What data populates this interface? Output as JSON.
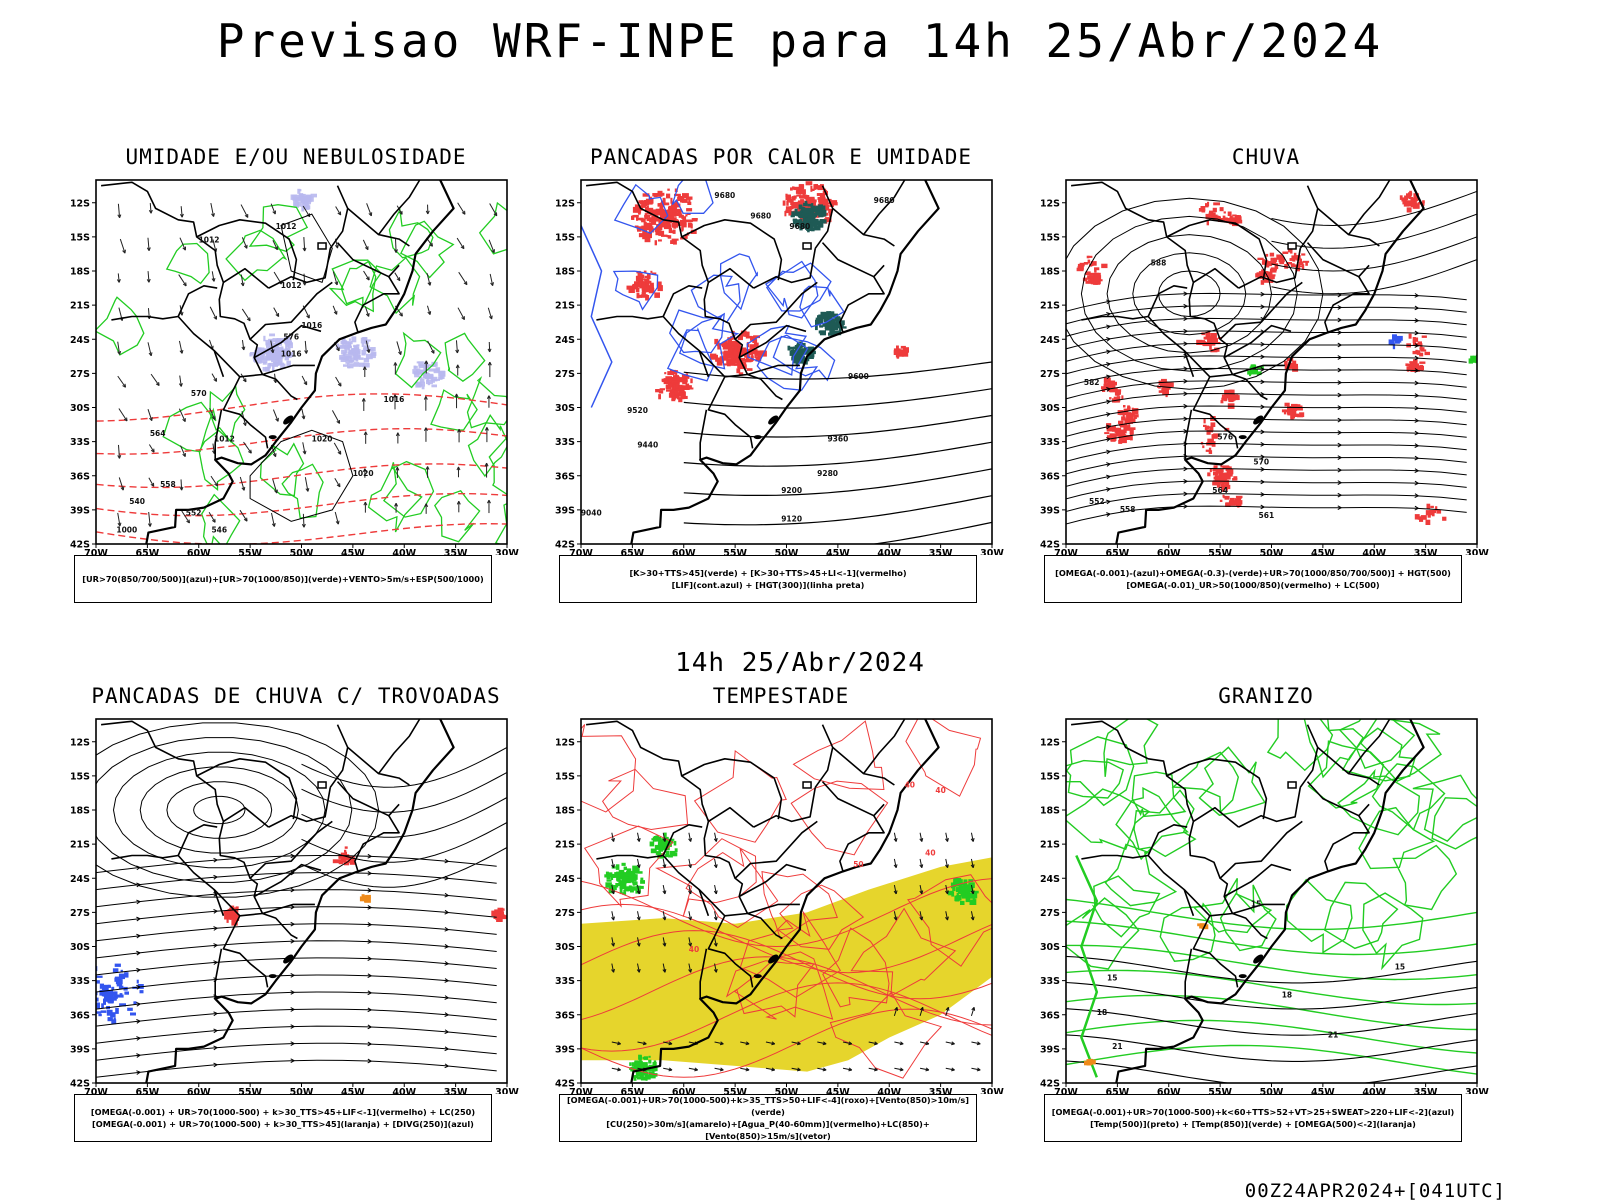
{
  "header": {
    "title": "Previsao WRF-INPE  para 14h 25/Abr/2024",
    "mid_title": "14h 25/Abr/2024",
    "footer": "00Z24APR2024+[041UTC]"
  },
  "axes": {
    "lat_labels": [
      "12S",
      "15S",
      "18S",
      "21S",
      "24S",
      "27S",
      "30S",
      "33S",
      "36S",
      "39S",
      "42S"
    ],
    "lon_labels": [
      "70W",
      "65W",
      "60W",
      "55W",
      "50W",
      "45W",
      "40W",
      "35W",
      "30W"
    ]
  },
  "panels": [
    {
      "title": "UMIDADE E/OU NEBULOSIDADE",
      "caption": [
        "[UR>70(850/700/500)](azul)+[UR>70(1000/850)](verde)+VENTO>5m/s+ESP(500/1000)"
      ],
      "contour_labels": [
        "1012",
        "1012",
        "1012",
        "1016",
        "1016",
        "1020",
        "1016",
        "1020",
        "1012",
        "1000",
        "576",
        "570",
        "564",
        "558",
        "552",
        "546",
        "540"
      ]
    },
    {
      "title": "PANCADAS POR CALOR E UMIDADE",
      "caption": [
        "[K>30+TTS>45](verde) + [K>30+TTS>45+LI<-1](vermelho)",
        "[LIF](cont.azul) + [HGT(300)](linha preta)"
      ],
      "contour_labels": [
        "9680",
        "9680",
        "9680",
        "9680",
        "9600",
        "9520",
        "9440",
        "9360",
        "9280",
        "9200",
        "9120",
        "9040"
      ]
    },
    {
      "title": "CHUVA",
      "caption": [
        "[OMEGA(-0.001)-(azul)+OMEGA(-0.3)-(verde)+UR>70(1000/850/700/500)] + HGT(500)",
        "[OMEGA(-0.01)_UR>50(1000/850)(vermelho) + LC(500)"
      ],
      "contour_labels": [
        "588",
        "582",
        "576",
        "570",
        "564",
        "561",
        "558",
        "552"
      ]
    },
    {
      "title": "PANCADAS DE CHUVA C/ TROVOADAS",
      "caption": [
        "[OMEGA(-0.001) + UR>70(1000-500) + k>30_TTS>45+LIF<-1](vermelho) + LC(250)",
        "[OMEGA(-0.001) + UR>70(1000-500) + k>30_TTS>45](laranja) + [DIVG(250)](azul)"
      ],
      "contour_labels": []
    },
    {
      "title": "TEMPESTADE",
      "caption": [
        "[OMEGA(-0.001)+UR>70(1000-500)+k>35_TTS>50+LIF<-4](roxo)+[Vento(850)>10m/s](verde)",
        "[CU(250)>30m/s](amarelo)+[Agua_P(40-60mm)](vermelho)+LC(850)+[Vento(850)>15m/s](vetor)"
      ],
      "contour_labels": [
        "40",
        "50",
        "40",
        "40",
        "40"
      ]
    },
    {
      "title": "GRANIZO",
      "caption": [
        "[OMEGA(-0.001)+UR>70(1000-500)+k<60+TTS>52+VT>25+SWEAT>220+LIF<-2](azul)",
        "[Temp(500)](preto) + [Temp(850)](verde) + [OMEGA(500)<-2](laranja)"
      ],
      "contour_labels": [
        "15",
        "18",
        "15",
        "21",
        "18",
        "15",
        "21"
      ]
    }
  ],
  "colors": {
    "land_outline": "#000000",
    "blue": "#3355ee",
    "green": "#22cc22",
    "red": "#ee3b3b",
    "dark_teal": "#1e5a55",
    "yellow": "#e6d52c",
    "orange": "#ee8a1a",
    "lavender": "#b8b8ee"
  }
}
